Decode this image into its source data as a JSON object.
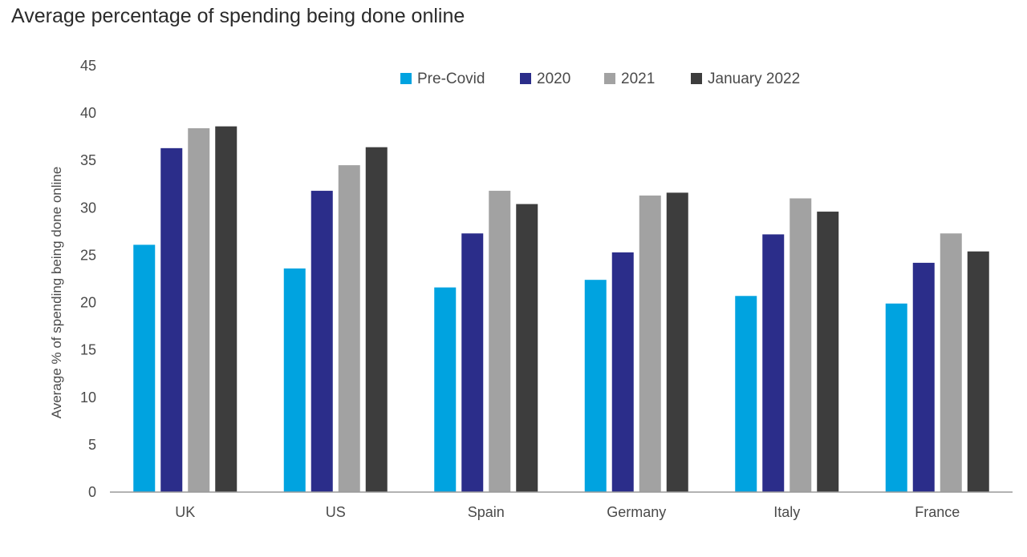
{
  "chart_data": {
    "type": "bar",
    "title": "Average percentage of spending being done online",
    "xlabel": "",
    "ylabel": "Average % of spending being done online",
    "categories": [
      "UK",
      "US",
      "Spain",
      "Germany",
      "Italy",
      "France"
    ],
    "ylim": [
      0,
      45
    ],
    "yticks": [
      0,
      5,
      10,
      15,
      20,
      25,
      30,
      35,
      40,
      45
    ],
    "grid": false,
    "legend_position": "top-right",
    "series": [
      {
        "name": "Pre-Covid",
        "color": "#00a3e0",
        "values": [
          26.1,
          23.6,
          21.6,
          22.4,
          20.7,
          19.9
        ]
      },
      {
        "name": "2020",
        "color": "#2b2d8a",
        "values": [
          36.3,
          31.8,
          27.3,
          25.3,
          27.2,
          24.2
        ]
      },
      {
        "name": "2021",
        "color": "#a2a2a2",
        "values": [
          38.4,
          34.5,
          31.8,
          31.3,
          31.0,
          27.3
        ]
      },
      {
        "name": "January 2022",
        "color": "#3d3d3d",
        "values": [
          38.6,
          36.4,
          30.4,
          31.6,
          29.6,
          25.4
        ]
      }
    ]
  }
}
